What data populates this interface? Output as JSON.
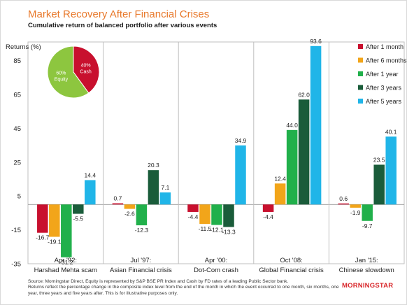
{
  "header": {
    "title": "Market Recovery After Financial Crises",
    "subtitle": "Cumulative return of balanced portfolio after various events"
  },
  "footer": {
    "source": "Source: Morningstar Direct, Equity is represented by S&P BSE PR Index and Cash by FD rates of a leading Public Sector bank.",
    "note": "Returns reflect the percentage change in the composite index level from the end of the month in which the event occurred to one month, six months, one year, three years and five years after. This is for illustrative purposes only.",
    "logo": "MORNINGSTAR"
  },
  "chart_data": {
    "type": "bar",
    "ylabel": "Returns (%)",
    "ylim": [
      -35,
      95
    ],
    "yticks": [
      85,
      65,
      45,
      25,
      5,
      -15,
      -35
    ],
    "grid": false,
    "legend_position": "top-right",
    "categories": [
      [
        "Apr '92:",
        "Harshad Mehta scam"
      ],
      [
        "Jul '97:",
        "Asian Financial crisis"
      ],
      [
        "Apr '00:",
        "Dot-Com crash"
      ],
      [
        "Oct '08:",
        "Global Financial crisis"
      ],
      [
        "Jan '15:",
        "Chinese slowdown"
      ]
    ],
    "series": [
      {
        "name": "After 1 month",
        "color": "#c8102e",
        "values": [
          -16.7,
          0.7,
          -4.4,
          -4.4,
          0.6
        ]
      },
      {
        "name": "After 6 months",
        "color": "#f2a51a",
        "values": [
          -19.1,
          -2.6,
          -11.5,
          12.4,
          -1.9
        ]
      },
      {
        "name": "After 1 year",
        "color": "#21b04b",
        "values": [
          -31.2,
          -12.3,
          -12.1,
          44.0,
          -9.7
        ]
      },
      {
        "name": "After 3 years",
        "color": "#1a5c3a",
        "values": [
          -5.5,
          20.3,
          -13.3,
          62.0,
          23.5
        ]
      },
      {
        "name": "After 5 years",
        "color": "#20b5e8",
        "values": [
          14.4,
          7.1,
          34.9,
          93.6,
          40.1
        ]
      }
    ],
    "inset_pie": {
      "type": "pie",
      "slices": [
        {
          "label": "40%",
          "sublabel": "Cash",
          "value": 40,
          "color": "#c8102e"
        },
        {
          "label": "60%",
          "sublabel": "Equity",
          "value": 60,
          "color": "#8dc63f"
        }
      ]
    }
  }
}
